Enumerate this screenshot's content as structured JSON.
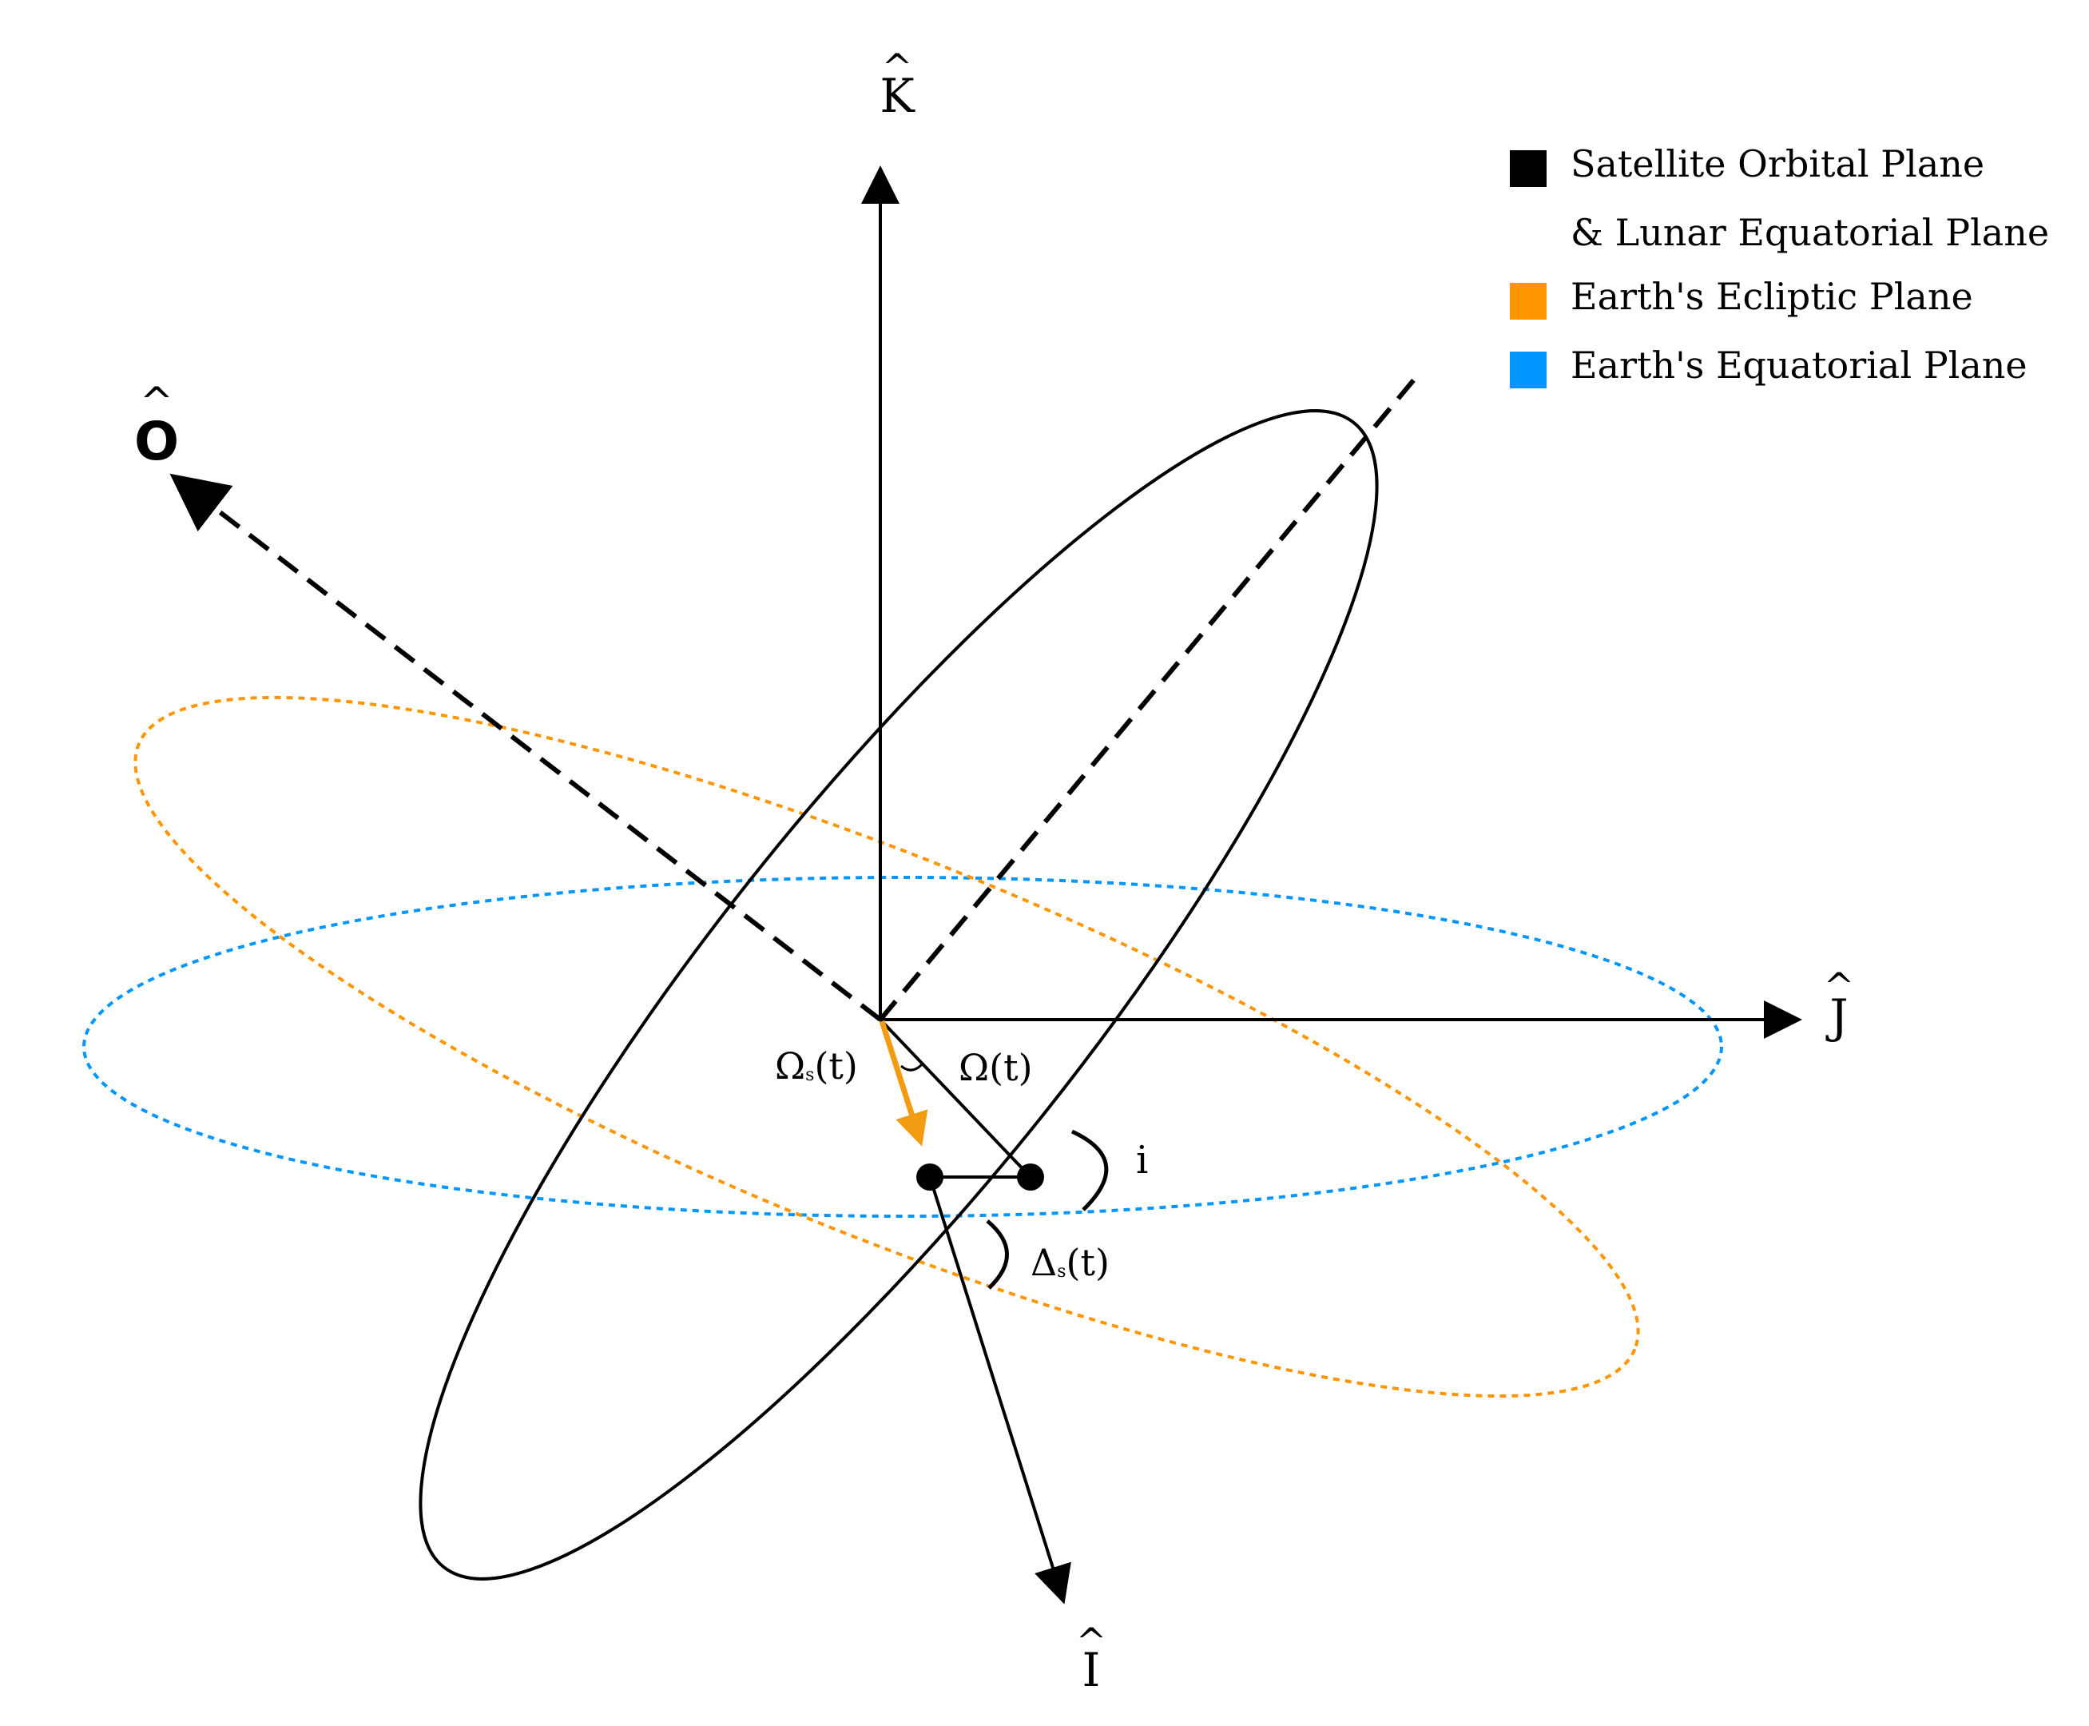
{
  "axes": {
    "K": {
      "label": "K",
      "hat": "^"
    },
    "J": {
      "label": "J",
      "hat": "^"
    },
    "I": {
      "label": "I",
      "hat": "^"
    },
    "O": {
      "label": "O",
      "hat": "^"
    }
  },
  "angles": {
    "omega_s": {
      "symbol": "Ω",
      "subscript": "s",
      "arg": "(t)"
    },
    "omega": {
      "text": "Ω(t)"
    },
    "inclination": {
      "text": "i"
    },
    "delta_s": {
      "symbol": "Δ",
      "subscript": "s",
      "arg": "(t)"
    }
  },
  "legend": {
    "items": [
      {
        "label": "Satellite Orbital Plane",
        "color": "#000000"
      },
      {
        "label": "& Lunar Equatorial Plane",
        "color": null
      },
      {
        "label": "Earth's Ecliptic Plane",
        "color": "#FF9500"
      },
      {
        "label": "Earth's Equatorial Plane",
        "color": "#0096FF"
      }
    ]
  },
  "colors": {
    "orbital_plane": "#000000",
    "ecliptic_plane": "#FF9500",
    "equatorial_plane": "#0096FF",
    "omega_s_vector": "#F39C12"
  }
}
